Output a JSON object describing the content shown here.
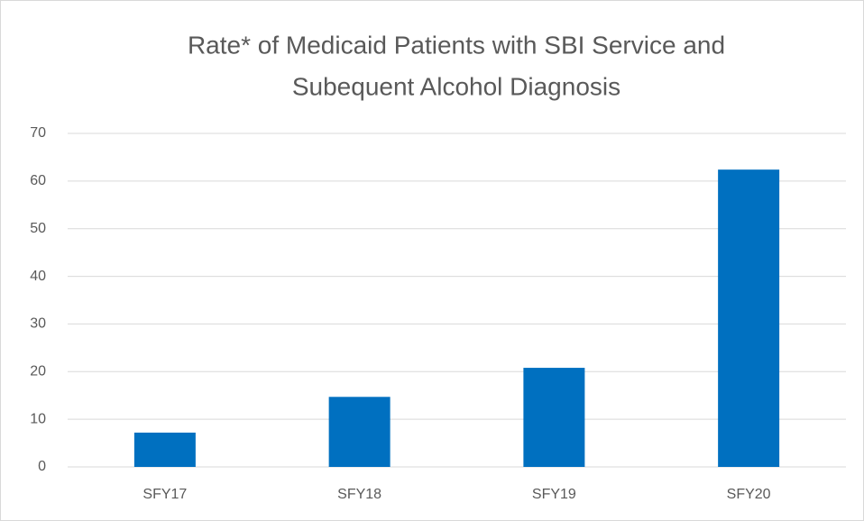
{
  "chart_data": {
    "type": "bar",
    "title": [
      "Rate* of Medicaid Patients with SBI Service and",
      "Subequent Alcohol Diagnosis"
    ],
    "categories": [
      "SFY17",
      "SFY18",
      "SFY19",
      "SFY20"
    ],
    "values": [
      7.2,
      14.7,
      20.8,
      62.4
    ],
    "color": "#0070c0",
    "ylim": [
      0,
      70
    ],
    "yticks": [
      0,
      10,
      20,
      30,
      40,
      50,
      60,
      70
    ],
    "grid": true
  }
}
